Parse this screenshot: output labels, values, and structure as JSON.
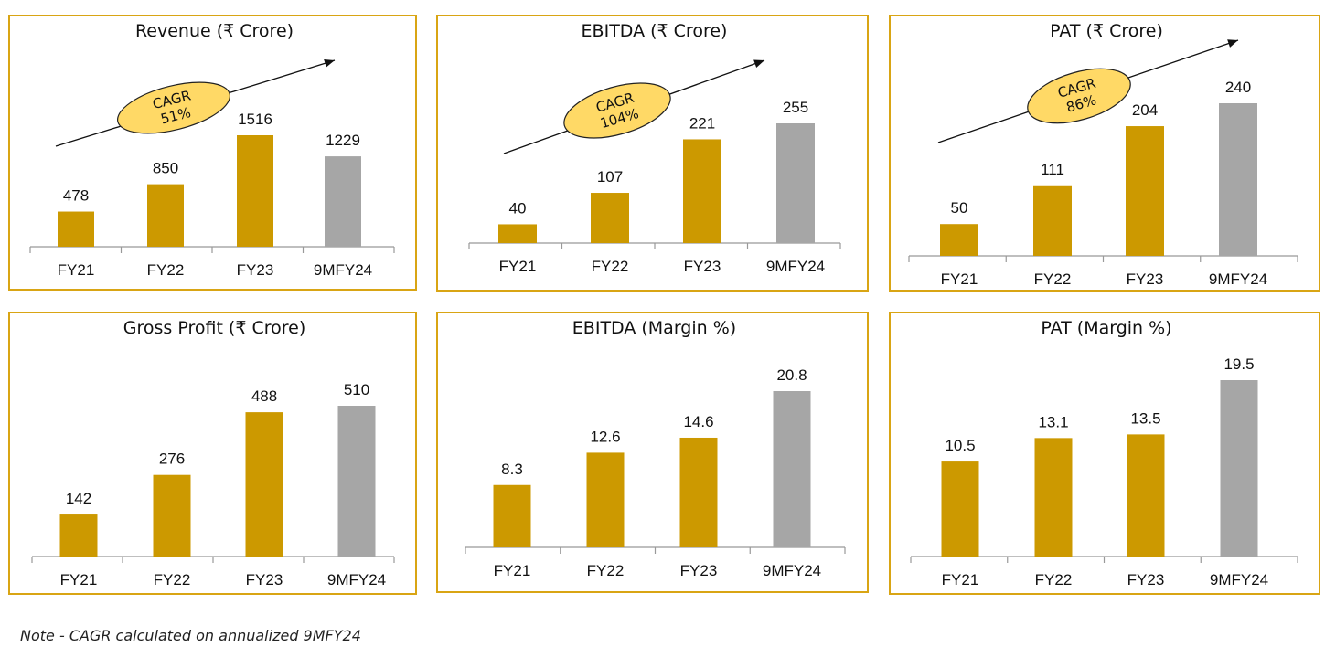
{
  "colors": {
    "bar_gold": "#cc9900",
    "bar_gray": "#a6a6a6",
    "border": "#d9a514",
    "cagr_fill": "#ffd966"
  },
  "note": "Note -  CAGR calculated on annualized 9MFY24",
  "chart_data": [
    {
      "type": "bar",
      "title": "Revenue (₹ Crore)",
      "categories": [
        "FY21",
        "FY22",
        "FY23",
        "9MFY24"
      ],
      "values": [
        478,
        850,
        1516,
        1229
      ],
      "cagr": [
        "CAGR",
        "51%"
      ]
    },
    {
      "type": "bar",
      "title": "EBITDA (₹ Crore)",
      "categories": [
        "FY21",
        "FY22",
        "FY23",
        "9MFY24"
      ],
      "values": [
        40,
        107,
        221,
        255
      ],
      "cagr": [
        "CAGR",
        "104%"
      ]
    },
    {
      "type": "bar",
      "title": "PAT (₹ Crore)",
      "categories": [
        "FY21",
        "FY22",
        "FY23",
        "9MFY24"
      ],
      "values": [
        50,
        111,
        204,
        240
      ],
      "cagr": [
        "CAGR",
        "86%"
      ]
    },
    {
      "type": "bar",
      "title": "Gross Profit (₹ Crore)",
      "categories": [
        "FY21",
        "FY22",
        "FY23",
        "9MFY24"
      ],
      "values": [
        142,
        276,
        488,
        510
      ]
    },
    {
      "type": "bar",
      "title": "EBITDA (Margin %)",
      "categories": [
        "FY21",
        "FY22",
        "FY23",
        "9MFY24"
      ],
      "values": [
        8.3,
        12.6,
        14.6,
        20.8
      ]
    },
    {
      "type": "bar",
      "title": "PAT (Margin %)",
      "categories": [
        "FY21",
        "FY22",
        "FY23",
        "9MFY24"
      ],
      "values": [
        10.5,
        13.1,
        13.5,
        19.5
      ]
    }
  ]
}
